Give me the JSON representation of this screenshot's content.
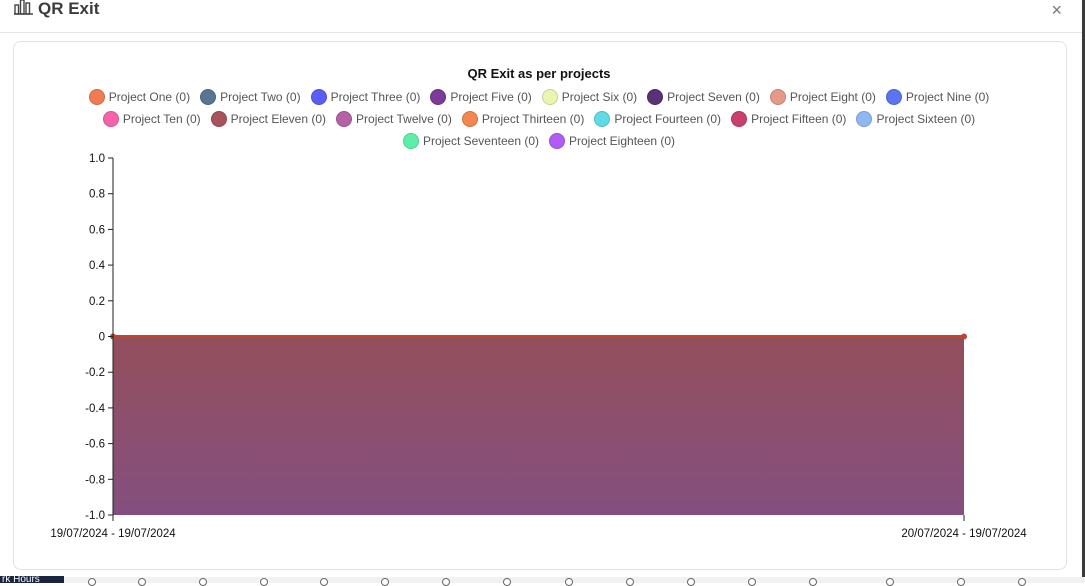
{
  "modal": {
    "title": "QR Exit",
    "close_label": "×"
  },
  "chart_data": {
    "type": "area",
    "title": "QR Exit as per projects",
    "x": [
      "19/07/2024 - 19/07/2024",
      "20/07/2024 - 19/07/2024"
    ],
    "ylim": [
      -1.0,
      1.0
    ],
    "yticks": [
      "1.0",
      "0.8",
      "0.6",
      "0.4",
      "0.2",
      "0",
      "-0.2",
      "-0.4",
      "-0.6",
      "-0.8",
      "-1.0"
    ],
    "grid": false,
    "legend_position": "top",
    "series": [
      {
        "name": "Project One (0)",
        "color": "#f07c52",
        "values": [
          0,
          0
        ]
      },
      {
        "name": "Project Two (0)",
        "color": "#5a7592",
        "values": [
          0,
          0
        ]
      },
      {
        "name": "Project Three (0)",
        "color": "#5b5df7",
        "values": [
          0,
          0
        ]
      },
      {
        "name": "Project Five (0)",
        "color": "#7c3a9a",
        "values": [
          0,
          0
        ]
      },
      {
        "name": "Project Six (0)",
        "color": "#eaf6b0",
        "values": [
          0,
          0
        ]
      },
      {
        "name": "Project Seven (0)",
        "color": "#5a3177",
        "values": [
          0,
          0
        ]
      },
      {
        "name": "Project Eight (0)",
        "color": "#e49a86",
        "values": [
          0,
          0
        ]
      },
      {
        "name": "Project Nine (0)",
        "color": "#5b74f0",
        "values": [
          0,
          0
        ]
      },
      {
        "name": "Project Ten (0)",
        "color": "#f763a9",
        "values": [
          0,
          0
        ]
      },
      {
        "name": "Project Eleven (0)",
        "color": "#a9525a",
        "values": [
          0,
          0
        ]
      },
      {
        "name": "Project Twelve (0)",
        "color": "#b462a6",
        "values": [
          0,
          0
        ]
      },
      {
        "name": "Project Thirteen (0)",
        "color": "#f3874f",
        "values": [
          0,
          0
        ]
      },
      {
        "name": "Project Fourteen (0)",
        "color": "#5fdbe6",
        "values": [
          0,
          0
        ]
      },
      {
        "name": "Project Fifteen (0)",
        "color": "#c8406b",
        "values": [
          0,
          0
        ]
      },
      {
        "name": "Project Sixteen (0)",
        "color": "#8fb7f4",
        "values": [
          0,
          0
        ]
      },
      {
        "name": "Project Seventeen (0)",
        "color": "#5cf0a6",
        "values": [
          0,
          0
        ]
      },
      {
        "name": "Project Eighteen (0)",
        "color": "#b15cf6",
        "values": [
          0,
          0
        ]
      }
    ],
    "area_fill": {
      "top": "#944f5c",
      "bottom": "#844f7f"
    },
    "line_color": "#c1442f"
  },
  "legend_rows": [
    [
      0,
      1,
      2,
      3,
      4,
      5,
      6,
      7
    ],
    [
      8,
      9,
      10,
      11,
      12,
      13,
      14
    ],
    [
      15,
      16
    ]
  ],
  "background": {
    "bottom_tag": "rk Hours"
  }
}
